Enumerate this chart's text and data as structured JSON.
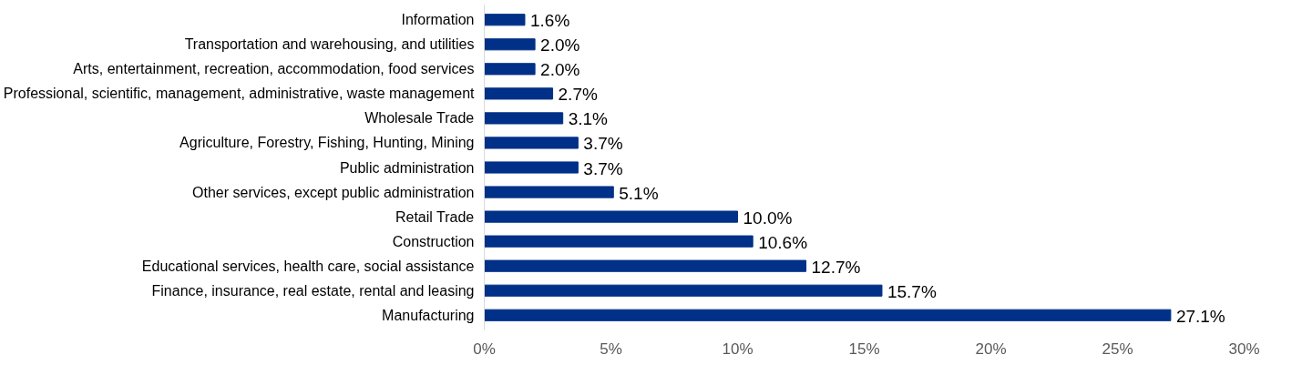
{
  "chart_data": {
    "type": "bar",
    "orientation": "horizontal",
    "categories": [
      "Information",
      "Transportation and warehousing, and utilities",
      "Arts, entertainment, recreation, accommodation, food services",
      "Professional, scientific, management, administrative, waste management",
      "Wholesale Trade",
      "Agriculture, Forestry, Fishing, Hunting, Mining",
      "Public administration",
      "Other services, except public administration",
      "Retail Trade",
      "Construction",
      "Educational services, health care, social assistance",
      "Finance, insurance, real estate, rental and leasing",
      "Manufacturing"
    ],
    "values": [
      1.6,
      2.0,
      2.0,
      2.7,
      3.1,
      3.7,
      3.7,
      5.1,
      10.0,
      10.6,
      12.7,
      15.7,
      27.1
    ],
    "value_labels": [
      "1.6%",
      "2.0%",
      "2.0%",
      "2.7%",
      "3.1%",
      "3.7%",
      "3.7%",
      "5.1%",
      "10.0%",
      "10.6%",
      "12.7%",
      "15.7%",
      "27.1%"
    ],
    "color": "#003087",
    "xlim": [
      0,
      30
    ],
    "xticks": [
      {
        "value": 0,
        "label": "0%"
      },
      {
        "value": 5,
        "label": "5%"
      },
      {
        "value": 10,
        "label": "10%"
      },
      {
        "value": 15,
        "label": "15%"
      },
      {
        "value": 20,
        "label": "20%"
      },
      {
        "value": 25,
        "label": "25%"
      },
      {
        "value": 30,
        "label": "30%"
      }
    ],
    "grid": false
  }
}
